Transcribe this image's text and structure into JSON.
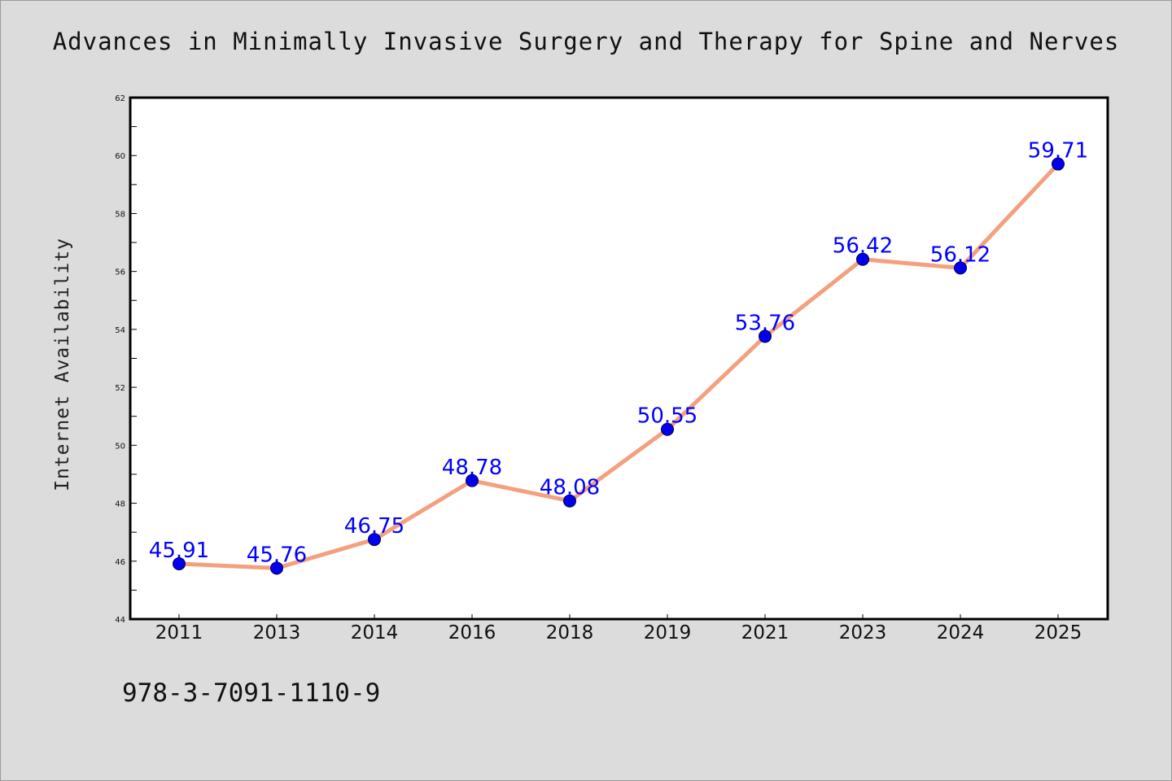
{
  "title": "Advances in Minimally Invasive Surgery and Therapy for Spine and Nerves",
  "footnote": "978-3-7091-1110-9",
  "chart_data": {
    "type": "line",
    "title": "Advances in Minimally Invasive Surgery and Therapy for Spine and Nerves",
    "xlabel": "",
    "ylabel": "Internet Availability",
    "categories": [
      "2011",
      "2013",
      "2014",
      "2016",
      "2018",
      "2019",
      "2021",
      "2023",
      "2024",
      "2025"
    ],
    "values": [
      45.91,
      45.76,
      46.75,
      48.78,
      48.08,
      50.55,
      53.76,
      56.42,
      56.12,
      59.71
    ],
    "data_labels": [
      "45.91",
      "45.76",
      "46.75",
      "48.78",
      "48.08",
      "50.55",
      "53.76",
      "56.42",
      "56.12",
      "59.71"
    ],
    "ylim": [
      44,
      62
    ],
    "yticks": [
      44,
      46,
      48,
      50,
      52,
      54,
      56,
      58,
      60,
      62
    ],
    "grid": false,
    "line_color": "#f4a07e",
    "marker_color": "#0000ee",
    "label_color": "#0000ff",
    "background": "#dcdcdc",
    "plot_background": "#ffffff"
  }
}
